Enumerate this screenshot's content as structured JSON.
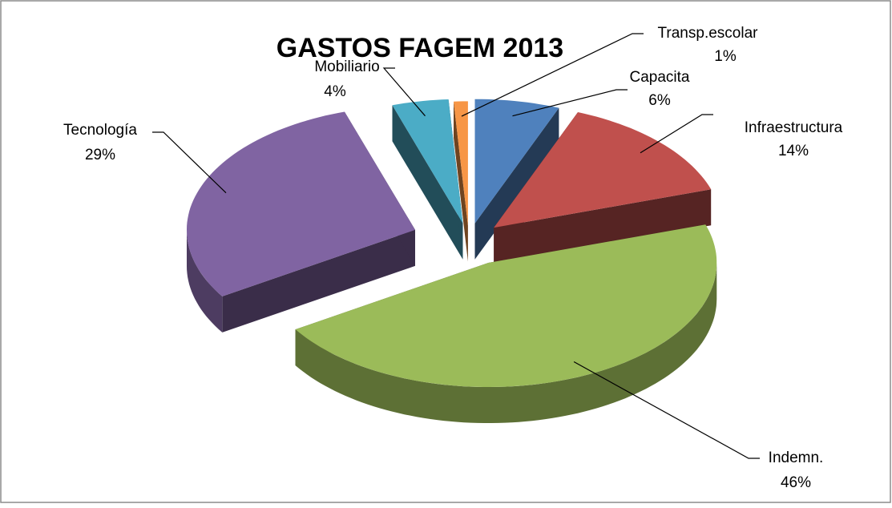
{
  "chart_data": {
    "type": "pie",
    "title": "GASTOS FAGEM 2013",
    "categories": [
      "Capacita",
      "Infraestructura",
      "Indemn.",
      "Tecnología",
      "Mobiliario",
      "Transp.escolar"
    ],
    "values": [
      6,
      14,
      46,
      29,
      4,
      1
    ],
    "value_labels": [
      "6%",
      "14%",
      "46%",
      "29%",
      "4%",
      "1%"
    ],
    "colors": [
      "#4f81bd",
      "#c0504d",
      "#9bbb59",
      "#8064a2",
      "#4bacc6",
      "#f79646"
    ]
  }
}
